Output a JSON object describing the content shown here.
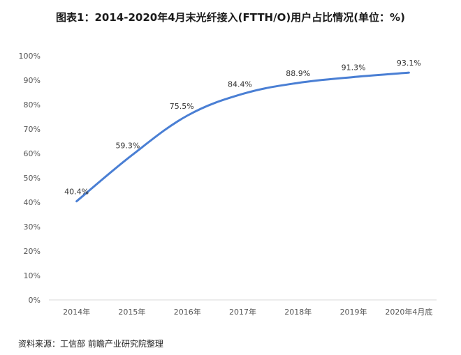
{
  "title": "图表1：2014-2020年4月末光纤接入(FTTH/O)用户占比情况(单位：%)",
  "source": "资料来源：工信部 前瞻产业研究院整理",
  "chart_data": {
    "type": "line",
    "title": "图表1：2014-2020年4月末光纤接入(FTTH/O)用户占比情况(单位：%)",
    "categories": [
      "2014年",
      "2015年",
      "2016年",
      "2017年",
      "2018年",
      "2019年",
      "2020年4月底"
    ],
    "series": [
      {
        "values": [
          40.4,
          59.3,
          75.5,
          84.4,
          88.9,
          91.3,
          93.1
        ],
        "labels": [
          "40.4%",
          "59.3%",
          "75.5%",
          "84.4%",
          "88.9%",
          "91.3%",
          "93.1%"
        ]
      }
    ],
    "ylim": [
      0,
      100
    ],
    "yticks": [
      "0%",
      "10%",
      "20%",
      "30%",
      "40%",
      "50%",
      "60%",
      "70%",
      "80%",
      "90%",
      "100%"
    ],
    "line_color": "#4a7fd4",
    "grid": false,
    "legend": "none",
    "smooth": true
  }
}
